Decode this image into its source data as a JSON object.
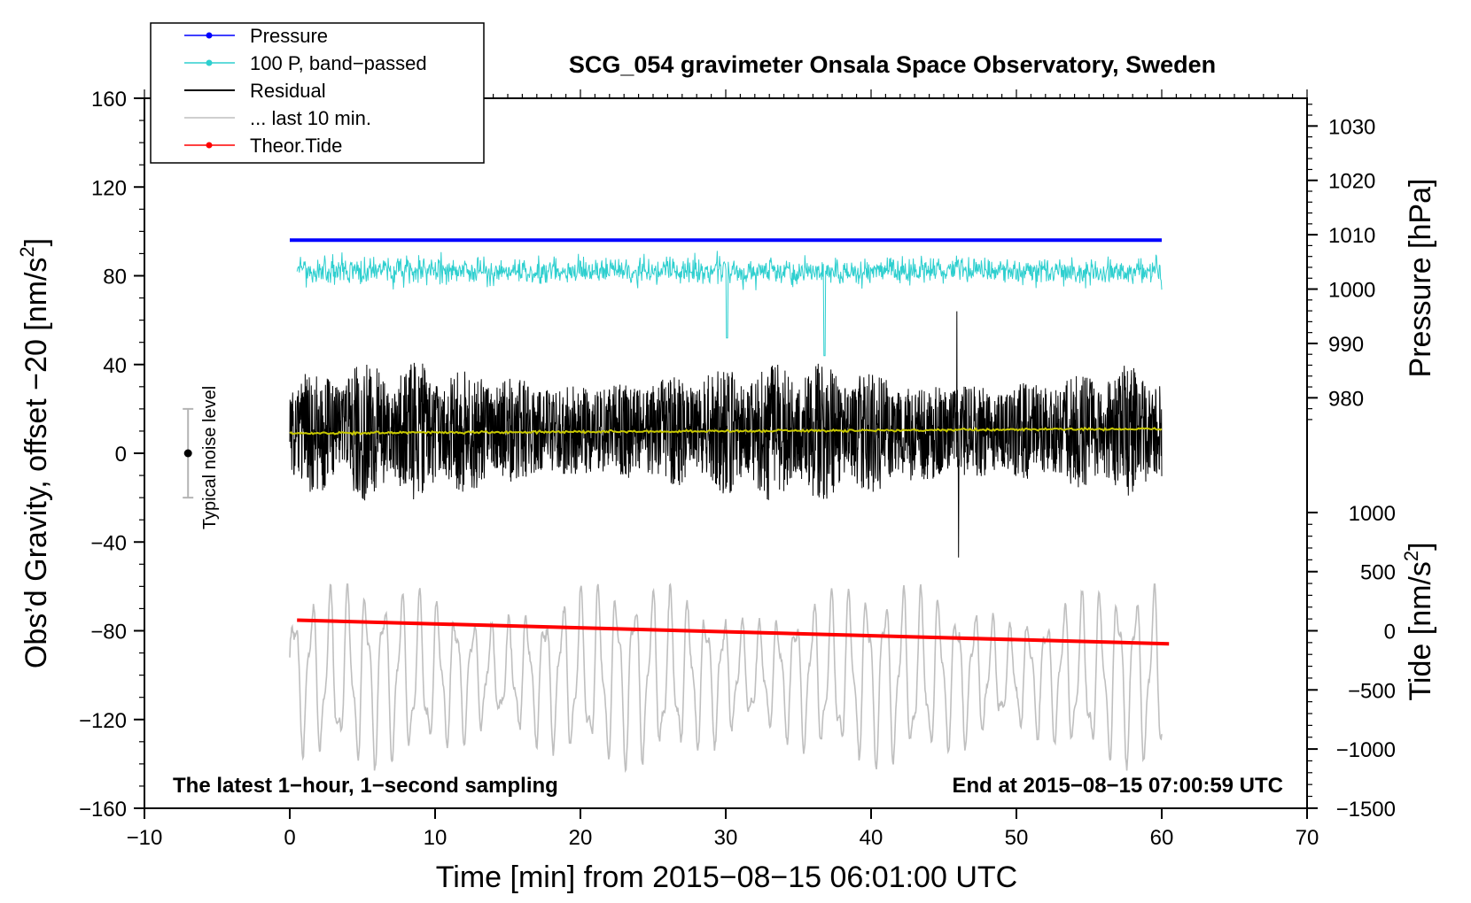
{
  "chart_data": {
    "type": "line",
    "title": "SCG_054 gravimeter Onsala Space Observatory, Sweden",
    "xlabel": "Time [min] from 2015−08−15 06:01:00 UTC",
    "ylabel_left": "Obs’d Gravity, offset −20 [nm/s",
    "ylabel_left_sup": "2",
    "ylabel_left_end": "]",
    "ylabel_right_pressure": "Pressure [hPa]",
    "ylabel_right_tide": "Tide [nm/s",
    "ylabel_right_tide_sup": "2",
    "ylabel_right_tide_end": "]",
    "xlim": [
      -10,
      70
    ],
    "ylim_left": [
      -160,
      160
    ],
    "x_ticks": [
      -10,
      0,
      10,
      20,
      30,
      40,
      50,
      60,
      70
    ],
    "x_tick_labels": [
      "−10",
      "0",
      "10",
      "20",
      "30",
      "40",
      "50",
      "60",
      "70"
    ],
    "y_ticks_left": [
      160,
      120,
      80,
      40,
      0,
      -40,
      -80,
      -120,
      -160
    ],
    "y_tick_labels_left": [
      "160",
      "120",
      "80",
      "40",
      "0",
      "−40",
      "−80",
      "−120",
      "−160"
    ],
    "pressure_axis": {
      "ticks": [
        1030,
        1020,
        1010,
        1000,
        990,
        980
      ],
      "labels": [
        "1030",
        "1020",
        "1010",
        "1000",
        "990",
        "980"
      ],
      "gravity_at_1030": 147.5,
      "gravity_per_hpa": 2.45
    },
    "tide_axis": {
      "ticks": [
        1000,
        500,
        0,
        -500,
        -1000,
        -1500
      ],
      "labels": [
        "1000",
        "500",
        "0",
        "−500",
        "−1000",
        "−1500"
      ],
      "gravity_at_0": -80,
      "gravity_per_unit": 0.0533
    },
    "legend": [
      {
        "label": "Pressure",
        "color": "#0000ff",
        "style": "line-dot"
      },
      {
        "label": "100 P, band−passed",
        "color": "#2ecfcf",
        "style": "line-dot"
      },
      {
        "label": "Residual",
        "color": "#000000",
        "style": "line"
      },
      {
        "label": "... last 10 min.",
        "color": "#bfbfbf",
        "style": "line"
      },
      {
        "label": "Theor.Tide",
        "color": "#ff0000",
        "style": "line-dot"
      }
    ],
    "series": [
      {
        "name": "Pressure",
        "color": "#0000ff",
        "x_range": [
          0,
          60
        ],
        "value_hpa": 1009.0
      },
      {
        "name": "100 P, band−passed",
        "color": "#2ecfcf",
        "x_range": [
          0.5,
          60
        ],
        "center_gravity": 82,
        "amplitude_gravity": 8,
        "min_gravity": 44,
        "min_at_x": 36.8
      },
      {
        "name": "Residual",
        "color": "#000000",
        "x_range": [
          0,
          60
        ],
        "center_gravity": 10,
        "amplitude_gravity": 28,
        "max_gravity": 64,
        "min_gravity": -47
      },
      {
        "name": "Residual smoothed",
        "color": "#c8c800",
        "x_range": [
          0,
          60
        ],
        "start_gravity": 9,
        "end_gravity": 11
      },
      {
        "name": "... last 10 min.",
        "color": "#bfbfbf",
        "x_range": [
          0,
          60
        ],
        "center_gravity": -100,
        "amplitude_gravity": 20,
        "max_gravity": -59,
        "min_gravity": -143
      },
      {
        "name": "Theor.Tide",
        "color": "#ff0000",
        "x": [
          0.5,
          60.5
        ],
        "values_nm_s2": [
          90,
          -110
        ]
      }
    ],
    "noise_bar": {
      "label": "Typical noise level",
      "x": -7,
      "center": 0,
      "half_range": 20
    }
  },
  "annotations": {
    "left": "The latest 1−hour, 1−second sampling",
    "right": "End at 2015−08−15 07:00:59 UTC"
  }
}
